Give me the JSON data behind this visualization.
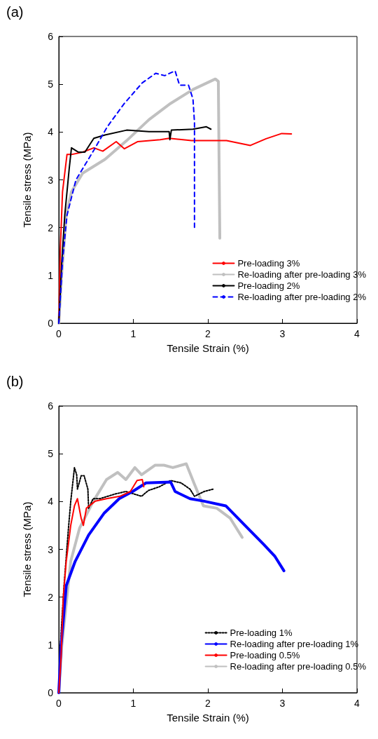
{
  "chart_data": [
    {
      "type": "line",
      "title": "(a)",
      "xlabel": "Tensile Strain (%)",
      "ylabel": "Tensile stress (MPa)",
      "xlim": [
        0,
        4
      ],
      "xticks": [
        0,
        1,
        2,
        3,
        4
      ],
      "ylim": [
        0,
        6
      ],
      "yticks": [
        0,
        1,
        2,
        3,
        4,
        5,
        6
      ],
      "grid": false,
      "legend": "bottom right",
      "marker": "none",
      "series": [
        {
          "name": "Pre-loading 3%",
          "color": "#ff0000",
          "line_style": "solid",
          "x": [
            0,
            0.02,
            0.05,
            0.11,
            0.17,
            0.32,
            0.47,
            0.59,
            0.77,
            0.88,
            1.06,
            1.36,
            1.48,
            1.78,
            2.25,
            2.57,
            2.78,
            2.99,
            3.12
          ],
          "values": [
            0,
            1.54,
            2.75,
            3.53,
            3.53,
            3.58,
            3.67,
            3.6,
            3.8,
            3.65,
            3.8,
            3.84,
            3.87,
            3.82,
            3.82,
            3.72,
            3.86,
            3.97,
            3.96
          ]
        },
        {
          "name": "Re-loading after pre-loading 3%",
          "color": "#c0c0c0",
          "line_style": "solid",
          "x": [
            0,
            0.04,
            0.1,
            0.17,
            0.32,
            0.62,
            0.91,
            1.21,
            1.5,
            1.8,
            2.1,
            2.14,
            2.15,
            2.16
          ],
          "values": [
            0,
            1.05,
            2.26,
            2.75,
            3.14,
            3.43,
            3.82,
            4.26,
            4.6,
            4.89,
            5.11,
            5.06,
            3.36,
            1.78
          ]
        },
        {
          "name": "Pre-loading 2%",
          "color": "#000000",
          "line_style": "solid",
          "x": [
            0,
            0.04,
            0.08,
            0.14,
            0.17,
            0.26,
            0.35,
            0.47,
            0.62,
            0.91,
            1.21,
            1.48,
            1.49,
            1.51,
            1.8,
            1.98,
            2.04
          ],
          "values": [
            0,
            1.29,
            2.26,
            3.24,
            3.67,
            3.58,
            3.58,
            3.87,
            3.94,
            4.04,
            4.01,
            4.01,
            3.84,
            4.04,
            4.06,
            4.11,
            4.06
          ]
        },
        {
          "name": "Re-loading after pre-loading 2%",
          "color": "#0000ff",
          "line_style": "dashed",
          "x": [
            0,
            0.05,
            0.11,
            0.23,
            0.47,
            0.65,
            0.88,
            1.12,
            1.3,
            1.42,
            1.56,
            1.62,
            1.74,
            1.8,
            1.82,
            1.82,
            1.82
          ],
          "values": [
            0,
            1.3,
            2.26,
            3.0,
            3.62,
            4.11,
            4.6,
            5.03,
            5.23,
            5.18,
            5.28,
            4.98,
            4.98,
            4.69,
            4.2,
            3.62,
            1.97
          ]
        }
      ]
    },
    {
      "type": "line",
      "title": "(b)",
      "xlabel": "Tensile Strain (%)",
      "ylabel": "Tensile stress (MPa)",
      "xlim": [
        0,
        4
      ],
      "xticks": [
        0,
        1,
        2,
        3,
        4
      ],
      "ylim": [
        0,
        6
      ],
      "yticks": [
        0,
        1,
        2,
        3,
        4,
        5,
        6
      ],
      "grid": false,
      "legend": "bottom right",
      "marker": "none",
      "series": [
        {
          "name": "Pre-loading 1%",
          "color": "#000000",
          "line_style": "dotted",
          "x": [
            0,
            0.03,
            0.07,
            0.13,
            0.16,
            0.21,
            0.24,
            0.25,
            0.3,
            0.34,
            0.39,
            0.4,
            0.46,
            0.55,
            0.76,
            0.9,
            1.11,
            1.2,
            1.35,
            1.5,
            1.64,
            1.76,
            1.82,
            1.95,
            2.07
          ],
          "values": [
            0,
            1.23,
            2.24,
            3.45,
            4.0,
            4.71,
            4.56,
            4.26,
            4.54,
            4.54,
            4.26,
            3.86,
            4.06,
            4.06,
            4.16,
            4.21,
            4.11,
            4.23,
            4.31,
            4.44,
            4.39,
            4.26,
            4.11,
            4.21,
            4.26
          ]
        },
        {
          "name": "Re-loading after pre-loading 1%",
          "color": "#0000ff",
          "line_style": "solid",
          "x": [
            0,
            0.03,
            0.1,
            0.22,
            0.4,
            0.61,
            0.81,
            0.99,
            1.17,
            1.5,
            1.56,
            1.76,
            1.94,
            2.24,
            2.53,
            2.75,
            2.9,
            3.02
          ],
          "values": [
            0,
            0.98,
            2.24,
            2.75,
            3.3,
            3.76,
            4.06,
            4.21,
            4.39,
            4.41,
            4.21,
            4.06,
            4.01,
            3.91,
            3.45,
            3.1,
            2.85,
            2.55
          ]
        },
        {
          "name": "Pre-loading 0.5%",
          "color": "#ff0000",
          "line_style": "solid",
          "x": [
            0,
            0.03,
            0.06,
            0.1,
            0.16,
            0.21,
            0.25,
            0.3,
            0.33,
            0.37,
            0.49,
            0.64,
            0.82,
            0.96,
            1.05,
            1.12,
            1.14
          ],
          "values": [
            0,
            0.73,
            1.99,
            2.75,
            3.5,
            3.91,
            4.06,
            3.65,
            3.5,
            3.86,
            4.01,
            4.06,
            4.11,
            4.21,
            4.44,
            4.46,
            4.31
          ]
        },
        {
          "name": "Re-loading after pre-loading 0.5%",
          "color": "#c0c0c0",
          "line_style": "solid",
          "x": [
            0,
            0.04,
            0.16,
            0.28,
            0.46,
            0.64,
            0.79,
            0.9,
            1.02,
            1.11,
            1.29,
            1.41,
            1.53,
            1.71,
            1.82,
            1.94,
            2.12,
            2.3,
            2.46
          ],
          "values": [
            0,
            0.98,
            2.75,
            3.45,
            4.0,
            4.46,
            4.61,
            4.46,
            4.71,
            4.56,
            4.76,
            4.76,
            4.71,
            4.79,
            4.36,
            3.91,
            3.86,
            3.65,
            3.25
          ]
        }
      ]
    }
  ]
}
